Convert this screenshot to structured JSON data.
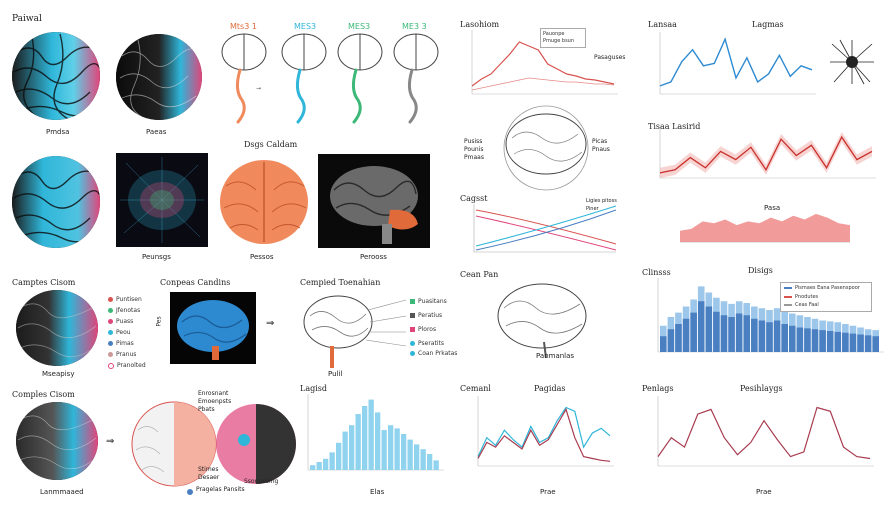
{
  "labels": {
    "topleft": "Paiwal",
    "disc1": "Pmdsa",
    "disc2": "Paeas",
    "brain_tags": [
      "Mts3 1",
      "MES3",
      "MES3",
      "ME3 3"
    ],
    "mid_top": "Dsgs Caldam",
    "mid_captions": [
      "Peunsgs",
      "Pessos",
      "Perooss"
    ],
    "left_row3_title": "Camptes Cisom",
    "left_row3_caption": "Mseapisy",
    "row3_legend": [
      "Puntisen",
      "Jfenotas",
      "Puass",
      "Peou",
      "Pimas",
      "Pranus",
      "Pranolted"
    ],
    "row3_mid_title": "Conpeas Candins",
    "row3_right_title": "Cempied Toenahian",
    "row3_right_legend": [
      "Puasitans",
      "Peratius",
      "Ploros",
      "Pseratits",
      "Coan Prkatas"
    ],
    "row3_right_caption": "Pulil",
    "bottom_left_title": "Comples Cisom",
    "bottom_left_caption": "Lanmmaaed",
    "bottom_mid_notes": [
      "Enrosnant",
      "Emoenpsts",
      "Pbats",
      "Stimes",
      "Desaer"
    ],
    "bottom_mid_caption": "Pragelas Pansits",
    "bottom_mid_caption2": "Ssonuseing",
    "hist_title": "Lagisd",
    "hist_xlabel": "Elas",
    "col3_top_title": "Lasohiom",
    "col3_top_legend": [
      "Pauonpe",
      "Pmuge bsun"
    ],
    "col3_top_note": "Pasaguses",
    "col3_brain_notes": [
      "Pusiss",
      "Pounis",
      "Pmaas"
    ],
    "col3_brain_right": [
      "Picas",
      "Pnaus"
    ],
    "col3_cross_title": "Cagsst",
    "col3_cross_legend": [
      "Ligies pitoss",
      "Piner"
    ],
    "col3_brain2_title": "Cean Pan",
    "col3_brain2_caption": "Panmanlas",
    "col3_wave_title": "Cemanl",
    "col3_wave_title2": "Pagidas",
    "col3_wave_xlabel": "Prae",
    "col4_top_title": "Lansaa",
    "col4_top_title2": "Lagmas",
    "col4_mid_title": "Tisaa Lasirid",
    "col4_mid_xlabel": "Pasa",
    "col4_bar_title": "Clinsss",
    "col4_bar_title2": "Disigs",
    "col4_bar_legend": [
      "Pismaes Eana Pasenspoor",
      "Pnodutes",
      "Ceas Faal"
    ],
    "col4_wave_title": "Penlags",
    "col4_wave_title2": "Pesihlaygs",
    "col4_wave_xlabel": "Prae"
  },
  "colors": {
    "cyan": "#2fb6d9",
    "magenta": "#e0457a",
    "orange": "#f08a5d",
    "red": "#d9534f",
    "blue": "#4a7fc1",
    "lightblue": "#8fd3ef",
    "green": "#3cb878"
  },
  "chart_data": [
    {
      "type": "line",
      "title": "Lasohiom",
      "x": [
        0,
        1,
        2,
        3,
        4,
        5,
        6,
        7,
        8,
        9,
        10,
        11,
        12,
        13,
        14,
        15
      ],
      "series": [
        {
          "values": [
            8,
            15,
            20,
            30,
            40,
            52,
            48,
            44,
            30,
            25,
            20,
            18,
            15,
            14,
            12,
            10
          ]
        },
        {
          "values": [
            4,
            6,
            8,
            10,
            12,
            14,
            16,
            15,
            14,
            13,
            12,
            12,
            11,
            10,
            10,
            9
          ]
        }
      ]
    },
    {
      "type": "line",
      "title": "Lansaa",
      "series": [
        {
          "values": [
            10,
            15,
            40,
            55,
            35,
            38,
            68,
            20,
            45,
            15,
            25,
            48,
            22,
            35,
            30
          ]
        }
      ]
    },
    {
      "type": "line",
      "title": "Tisaa Lasirid",
      "series": [
        {
          "values": [
            5,
            8,
            20,
            10,
            26,
            18,
            30,
            8,
            38,
            22,
            32,
            10,
            40,
            18,
            26
          ]
        }
      ]
    },
    {
      "type": "area",
      "series": [
        {
          "values": [
            12,
            14,
            22,
            20,
            24,
            18,
            22,
            20,
            26,
            22,
            28,
            24,
            30,
            26,
            20,
            18
          ]
        }
      ]
    },
    {
      "type": "bar",
      "title": "Clinsss",
      "series": [
        {
          "values": [
            30,
            40,
            45,
            52,
            60,
            75,
            68,
            62,
            58,
            55,
            58,
            56,
            52,
            50,
            48,
            50,
            46,
            44,
            42,
            40,
            38,
            36,
            35,
            34,
            32,
            30,
            28,
            26,
            25
          ]
        },
        {
          "values": [
            18,
            26,
            32,
            38,
            45,
            58,
            52,
            46,
            42,
            40,
            44,
            42,
            38,
            36,
            34,
            36,
            32,
            30,
            28,
            27,
            26,
            25,
            24,
            23,
            22,
            21,
            20,
            19,
            18
          ]
        }
      ]
    },
    {
      "type": "bar",
      "title": "Lagisd",
      "values": [
        6,
        10,
        14,
        22,
        34,
        48,
        56,
        70,
        80,
        88,
        72,
        50,
        56,
        52,
        45,
        38,
        32,
        26,
        20,
        12
      ],
      "xlabel": "Elas"
    },
    {
      "type": "line",
      "title": "Cemanl",
      "series": [
        {
          "values": [
            10,
            30,
            22,
            38,
            28,
            20,
            42,
            25,
            30,
            48,
            62,
            58,
            20,
            35,
            40,
            32
          ]
        },
        {
          "values": [
            8,
            25,
            20,
            32,
            25,
            18,
            38,
            22,
            28,
            44,
            60,
            30,
            10,
            8,
            6,
            5
          ]
        }
      ]
    },
    {
      "type": "line",
      "title": "Penlags",
      "series": [
        {
          "values": [
            10,
            30,
            20,
            55,
            60,
            30,
            12,
            25,
            48,
            28,
            10,
            15,
            62,
            58,
            20,
            10,
            8
          ]
        }
      ]
    }
  ]
}
